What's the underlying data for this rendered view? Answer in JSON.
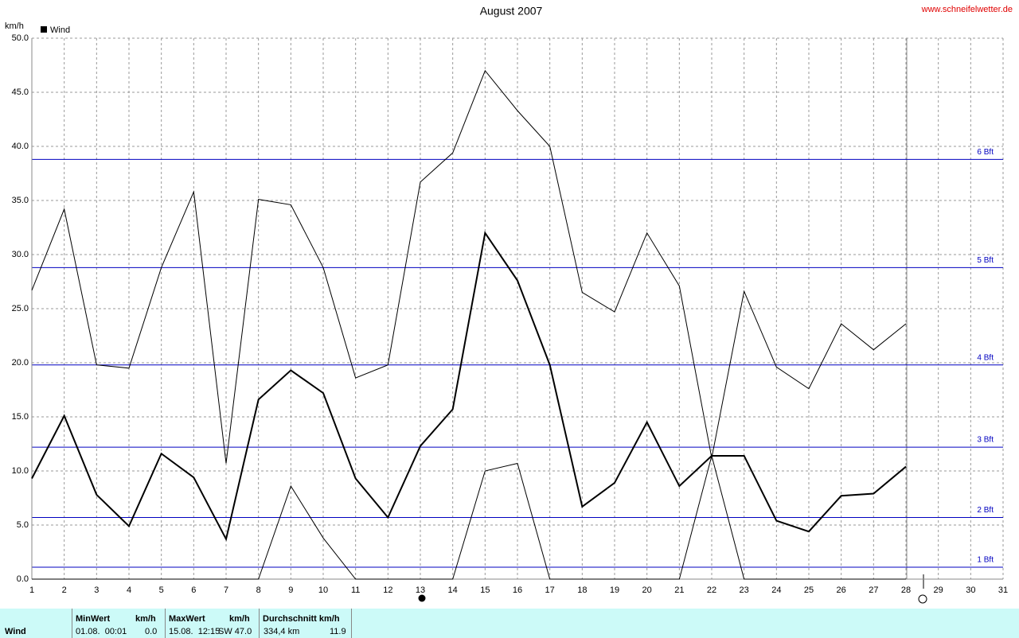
{
  "chart_data": {
    "type": "line",
    "title": "August 2007",
    "source": "www.schneifelwetter.de",
    "y_label": "km/h",
    "x": [
      1,
      2,
      3,
      4,
      5,
      6,
      7,
      8,
      9,
      10,
      11,
      12,
      13,
      14,
      15,
      16,
      17,
      18,
      19,
      20,
      21,
      22,
      23,
      24,
      25,
      26,
      27,
      28
    ],
    "series": [
      {
        "color": "#000000",
        "width": 1,
        "values": [
          26.7,
          34.2,
          19.8,
          19.5,
          28.8,
          35.8,
          10.7,
          35.1,
          34.6,
          28.8,
          18.6,
          19.8,
          36.7,
          39.4,
          47.0,
          43.3,
          40.0,
          26.5,
          24.7,
          32.0,
          27.1,
          11.2,
          26.6,
          19.6,
          17.6,
          23.6,
          21.2,
          23.6
        ]
      },
      {
        "name": "Wind",
        "color": "#000000",
        "width": 2,
        "values": [
          9.3,
          15.1,
          7.8,
          4.9,
          11.6,
          9.4,
          3.7,
          16.6,
          19.3,
          17.2,
          9.3,
          5.7,
          12.3,
          15.7,
          32.0,
          27.6,
          19.8,
          6.7,
          8.9,
          14.5,
          8.6,
          11.4,
          11.4,
          5.4,
          4.4,
          7.7,
          7.9,
          10.4
        ]
      },
      {
        "color": "#000000",
        "width": 1,
        "values": [
          0,
          0,
          0,
          0,
          0,
          0,
          0,
          0,
          8.6,
          3.8,
          0,
          0,
          0,
          0,
          10.0,
          10.7,
          0,
          0,
          0,
          0,
          0,
          11.4,
          0,
          0,
          0,
          0,
          0,
          0
        ]
      }
    ],
    "xlim": [
      1,
      31
    ],
    "xticks": [
      1,
      2,
      3,
      4,
      5,
      6,
      7,
      8,
      9,
      10,
      11,
      12,
      13,
      14,
      15,
      16,
      17,
      18,
      19,
      20,
      21,
      22,
      23,
      24,
      25,
      26,
      27,
      28,
      29,
      30,
      31
    ],
    "ylim": [
      0,
      50
    ],
    "yticks": [
      {
        "value": 0,
        "label": "0.0"
      },
      {
        "value": 5,
        "label": "5.0"
      },
      {
        "value": 10,
        "label": "10.0"
      },
      {
        "value": 15,
        "label": "15.0"
      },
      {
        "value": 20,
        "label": "20.0"
      },
      {
        "value": 25,
        "label": "25.0"
      },
      {
        "value": 30,
        "label": "30.0"
      },
      {
        "value": 35,
        "label": "35.0"
      },
      {
        "value": 40,
        "label": "40.0"
      },
      {
        "value": 45,
        "label": "45.0"
      },
      {
        "value": 50,
        "label": "50.0"
      }
    ],
    "grid": true,
    "reference_lines": {
      "color": "#0000c0",
      "lines": [
        {
          "value": 1.1,
          "label": "1 Bft"
        },
        {
          "value": 5.7,
          "label": "2 Bft"
        },
        {
          "value": 12.2,
          "label": "3 Bft"
        },
        {
          "value": 19.8,
          "label": "4 Bft"
        },
        {
          "value": 28.8,
          "label": "5 Bft"
        },
        {
          "value": 38.8,
          "label": "6 Bft"
        }
      ]
    }
  },
  "stats_table": {
    "row_label": "Wind",
    "min": {
      "header": "MinWert",
      "unit": "km/h",
      "time": "01.08.  00:01",
      "value": "0.0"
    },
    "max": {
      "header": "MaxWert",
      "unit": "km/h",
      "time": "15.08.  12:15",
      "value": "SW 47.0"
    },
    "avg": {
      "header": "Durchschnitt km/h",
      "distance": "334,4 km",
      "value": "11.9"
    }
  }
}
